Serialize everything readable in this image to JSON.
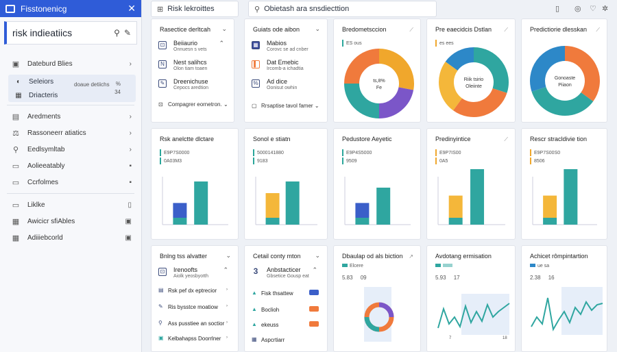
{
  "window": {
    "title": "Fisstonenicg"
  },
  "sidebar": {
    "search_title": "risk indieatiics",
    "items_top": [
      {
        "icon": "▣",
        "label": "Dateburd Blies",
        "right": "›"
      }
    ],
    "group": {
      "row1": "Seleiors",
      "row2": "Driacteris",
      "mid": "doaue detiichs",
      "n1": "%",
      "n2": "34"
    },
    "items": [
      {
        "icon": "▤",
        "label": "Aredments",
        "right": "›"
      },
      {
        "icon": "⚖",
        "label": "Rassoneerr atiatics",
        "right": "›"
      },
      {
        "icon": "⚲",
        "label": "Eedlsymltab",
        "right": "›"
      },
      {
        "icon": "▭",
        "label": "Aolieeatably",
        "right": "▪"
      },
      {
        "icon": "▭",
        "label": "Ccrfolmes",
        "right": "▪"
      }
    ],
    "items2": [
      {
        "icon": "▭",
        "label": "Liklke",
        "right": "▯"
      },
      {
        "icon": "▦",
        "label": "Awicicr sfiAbles",
        "right": "▣"
      },
      {
        "icon": "▦",
        "label": "Adiiiebcorld",
        "right": "▣"
      }
    ]
  },
  "topbar": {
    "tab1": "Risk lekroittes",
    "tab2": "Obietash ara snsdiecttion"
  },
  "row1": {
    "card1": {
      "title": "Rasectice derltcah",
      "items": [
        {
          "icon": "⊡",
          "t": "Beiiaurio",
          "s": "Onnuesn s vets",
          "c": "⌃"
        },
        {
          "icon": "N",
          "t": "Nest salihcs",
          "s": "Olon tiam toaen",
          "c": ""
        },
        {
          "icon": "✎",
          "t": "Dreenichuse",
          "s": "Cepocs aredtion",
          "c": ""
        }
      ],
      "footer": "Compagrer eornetron."
    },
    "card2": {
      "title": "Guiats ode aibon",
      "items": [
        {
          "icon": "▦",
          "t": "Mabios",
          "s": "Corovc se ad cnber",
          "c": ""
        },
        {
          "icon": "▌",
          "t": "Dat Emebic",
          "s": "Ircomb-a ichadtia",
          "c": ""
        },
        {
          "icon": "%",
          "t": "Ad dice",
          "s": "Oonisut owhin",
          "c": ""
        }
      ],
      "footer": "Rrsaptise tavol famer"
    },
    "donut1": {
      "title": "Bredometsccion",
      "sub": "ES ous",
      "center1": "ts,8%",
      "center2": "Fe",
      "slices": [
        {
          "v": 28,
          "c": "#f0a72c"
        },
        {
          "v": 22,
          "c": "#7b56c8"
        },
        {
          "v": 25,
          "c": "#2fa6a0"
        },
        {
          "v": 25,
          "c": "#f07a3c"
        }
      ]
    },
    "donut2": {
      "title": "Pre eaecidcis Dstlan",
      "sub": "es ees",
      "center1": "Riik tsirio",
      "center2": "Oleiinte",
      "slices": [
        {
          "v": 30,
          "c": "#2fa6a0"
        },
        {
          "v": 30,
          "c": "#f07a3c"
        },
        {
          "v": 25,
          "c": "#f4b73a"
        },
        {
          "v": 15,
          "c": "#2d88c8"
        }
      ]
    },
    "donut3": {
      "title": "Predictiorie dlesskan",
      "sub": "",
      "center1": "Gonoaste",
      "center2": "Piiaon",
      "slices": [
        {
          "v": 35,
          "c": "#f07a3c"
        },
        {
          "v": 35,
          "c": "#2fa6a0"
        },
        {
          "v": 30,
          "c": "#2d88c8"
        }
      ]
    }
  },
  "row2": {
    "cards": [
      {
        "title": "Rsk anelctte dlctare",
        "l1": "E9P7S0000",
        "l2": "0A03M3",
        "bars": [
          {
            "v": 35,
            "c": "#2fa6a0"
          },
          {
            "v": 12,
            "c": "#3b5fc9"
          }
        ]
      },
      {
        "title": "Sonol e stiatn",
        "l1": "5000141880",
        "l2": "9183",
        "bars": [
          {
            "v": 35,
            "c": "#2fa6a0"
          },
          {
            "v": 20,
            "c": "#f4b73a"
          }
        ]
      },
      {
        "title": "Pedustore Aeyetic",
        "l1": "E9P4S5000",
        "l2": "9509",
        "bars": [
          {
            "v": 30,
            "c": "#2fa6a0"
          },
          {
            "v": 12,
            "c": "#3b5fc9"
          }
        ]
      },
      {
        "title": "Predinyintice",
        "l1": "E9P7IS00",
        "l2": "0A5",
        "bars": [
          {
            "v": 45,
            "c": "#2fa6a0"
          },
          {
            "v": 18,
            "c": "#f4b73a"
          }
        ]
      },
      {
        "title": "Rescr stracldivie tion",
        "l1": "E9P7S00S0",
        "l2": "8506",
        "bars": [
          {
            "v": 45,
            "c": "#2fa6a0"
          },
          {
            "v": 18,
            "c": "#f4b73a"
          }
        ]
      }
    ]
  },
  "row3": {
    "card1": {
      "title": "Bnlng tss alvatter",
      "items": [
        {
          "icon": "⊡",
          "t": "Irenoofts",
          "s": "Aiolk yeosbyotth",
          "c": "⌃"
        },
        {
          "icon": "▤",
          "t": "Rsk pef dx eptrecior",
          "s": "",
          "c": "›"
        },
        {
          "icon": "✎",
          "t": "Ris bysstce moatiow",
          "s": "",
          "c": "›"
        },
        {
          "icon": "⚲",
          "t": "Ass pusstiee an soctior",
          "s": "",
          "c": "›"
        },
        {
          "icon": "▣",
          "t": "Kelbahapss Doorrlner",
          "s": "",
          "c": "›"
        }
      ]
    },
    "card2": {
      "title": "Cetail conty mton",
      "items": [
        {
          "icon": "3",
          "t": "Anbstacticer",
          "s": "Gbsetice Gousp eat",
          "c": "⌃"
        },
        {
          "icon": "▲",
          "t": "Fisk thsattew",
          "tag": "#3b5fc9"
        },
        {
          "icon": "▲",
          "t": "Boclioh",
          "tag": "#f07a3c"
        },
        {
          "icon": "▲",
          "t": "ekeuss",
          "tag": "#f07a3c"
        },
        {
          "icon": "▦",
          "t": "Aspcrtiarr",
          "tag": ""
        }
      ]
    },
    "card3": {
      "title": "Dbaulap od als biction",
      "l1": "5.83",
      "l2": "09",
      "l3": "Elcere"
    },
    "card4": {
      "title": "Avdotang ermisation",
      "l1": "5.93",
      "l2": "17",
      "l3": "7",
      "l4": "18"
    },
    "card5": {
      "title": "Achicet rômpintartion",
      "l1": "2.38",
      "l2": "16",
      "l3": "ue sa"
    }
  }
}
